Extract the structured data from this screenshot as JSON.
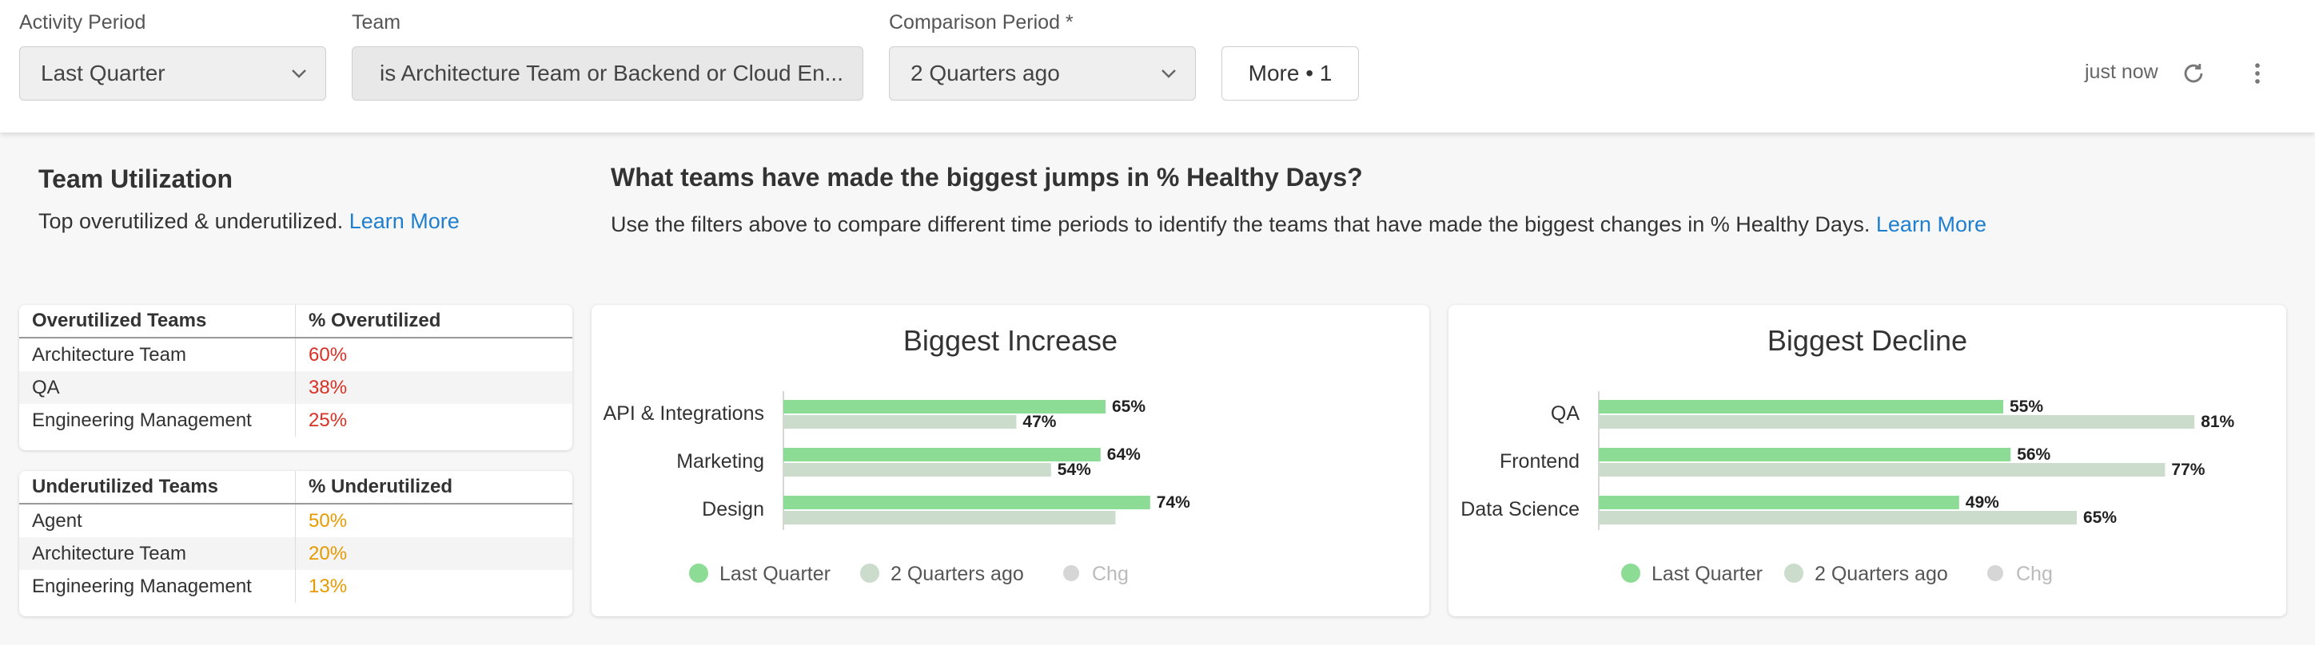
{
  "filters": {
    "activity_period": {
      "label": "Activity Period",
      "value": "Last Quarter"
    },
    "team": {
      "label": "Team",
      "value": "is Architecture Team or Backend or Cloud En..."
    },
    "comparison_period": {
      "label": "Comparison Period *",
      "value": "2 Quarters ago"
    },
    "more_button": "More • 1"
  },
  "toolbar": {
    "updated": "just now",
    "refresh_icon": "refresh-icon",
    "menu_icon": "more-vertical-icon"
  },
  "utilization": {
    "title": "Team Utilization",
    "subtitle": "Top overutilized & underutilized.",
    "link": "Learn More",
    "overutilized": {
      "col1": "Overutilized Teams",
      "col2": "% Overutilized",
      "color": "#d93025",
      "rows": [
        {
          "team": "Architecture Team",
          "pct": "60%"
        },
        {
          "team": "QA",
          "pct": "38%"
        },
        {
          "team": "Engineering Management",
          "pct": "25%"
        }
      ]
    },
    "underutilized": {
      "col1": "Underutilized Teams",
      "col2": "% Underutilized",
      "color": "#e69a00",
      "rows": [
        {
          "team": "Agent",
          "pct": "50%"
        },
        {
          "team": "Architecture Team",
          "pct": "20%"
        },
        {
          "team": "Engineering Management",
          "pct": "13%"
        }
      ]
    }
  },
  "healthy": {
    "title": "What teams have made the biggest jumps in % Healthy Days?",
    "subtitle": "Use the filters above to compare different time periods to identify the teams that have made the biggest changes in % Healthy Days.",
    "link": "Learn More"
  },
  "chart_data": [
    {
      "type": "bar",
      "title": "Biggest Increase",
      "categories": [
        "API & Integrations",
        "Marketing",
        "Design"
      ],
      "series": [
        {
          "name": "Last Quarter",
          "values": [
            65,
            64,
            74
          ],
          "labels": [
            "65%",
            "64%",
            "74%"
          ],
          "color": "#8ddc96"
        },
        {
          "name": "2 Quarters ago",
          "values": [
            47,
            54,
            67
          ],
          "labels": [
            "47%",
            "54%",
            ""
          ],
          "color": "#cbdccc"
        }
      ],
      "legend_extra": "Chg",
      "xlim": [
        0,
        100
      ],
      "legend": "bottom"
    },
    {
      "type": "bar",
      "title": "Biggest Decline",
      "categories": [
        "QA",
        "Frontend",
        "Data Science"
      ],
      "series": [
        {
          "name": "Last Quarter",
          "values": [
            55,
            56,
            49
          ],
          "labels": [
            "55%",
            "56%",
            "49%"
          ],
          "color": "#8ddc96"
        },
        {
          "name": "2 Quarters ago",
          "values": [
            81,
            77,
            65
          ],
          "labels": [
            "81%",
            "77%",
            "65%"
          ],
          "color": "#cbdccc"
        }
      ],
      "legend_extra": "Chg",
      "xlim": [
        0,
        100
      ],
      "legend": "bottom"
    }
  ]
}
